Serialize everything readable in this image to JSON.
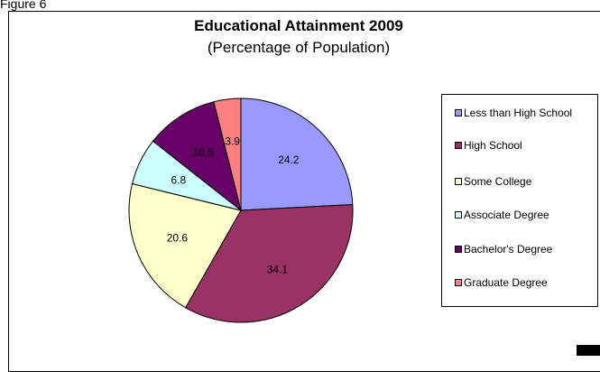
{
  "page_caption": "Figure 6",
  "chart_data": {
    "type": "pie",
    "title": "Educational Attainment 2009",
    "subtitle": "(Percentage of Population)",
    "slices": [
      {
        "label": "Less than High School",
        "value": 24.2,
        "value_label": "24.2",
        "color": "#9999ff"
      },
      {
        "label": "High School",
        "value": 34.1,
        "value_label": "34.1",
        "color": "#993366"
      },
      {
        "label": "Some College",
        "value": 20.6,
        "value_label": "20.6",
        "color": "#ffffcc"
      },
      {
        "label": "Associate Degree",
        "value": 6.8,
        "value_label": "6.8",
        "color": "#ccffff"
      },
      {
        "label": "Bachelor's Degree",
        "value": 10.5,
        "value_label": "10.5",
        "color": "#660066"
      },
      {
        "label": "Graduate Degree",
        "value": 3.9,
        "value_label": "3.9",
        "color": "#ff8080"
      }
    ],
    "legend_position": "right"
  },
  "legend": {
    "items": [
      {
        "label": "Less than High School"
      },
      {
        "label": "High School"
      },
      {
        "label": "Some College"
      },
      {
        "label": "Associate Degree"
      },
      {
        "label": "Bachelor's Degree"
      },
      {
        "label": "Graduate Degree"
      }
    ]
  }
}
